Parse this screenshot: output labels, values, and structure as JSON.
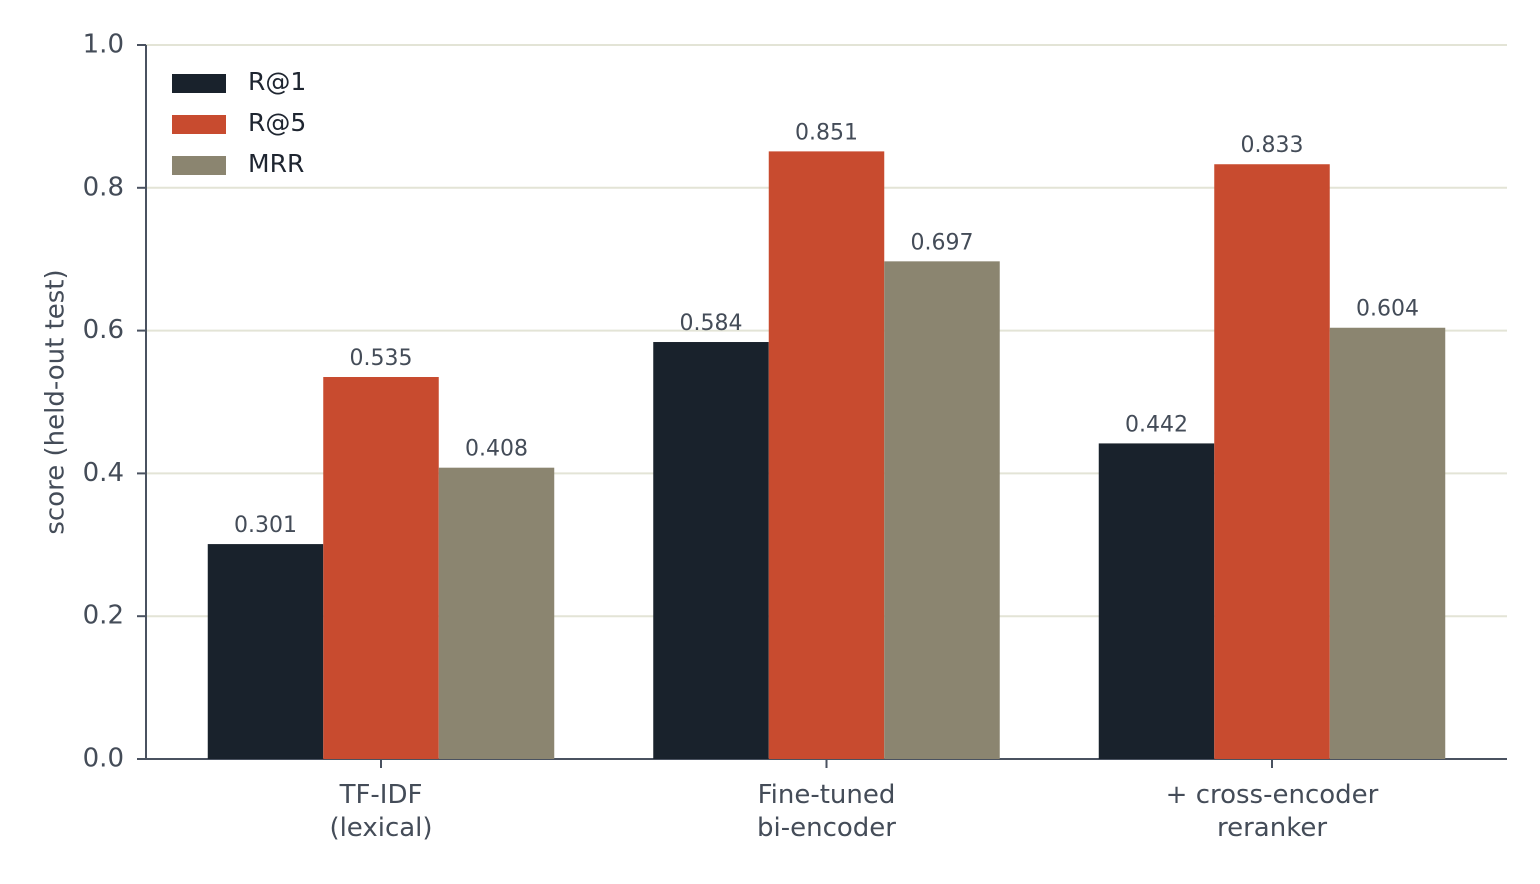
{
  "chart_data": {
    "type": "bar",
    "ylabel": "score (held-out test)",
    "categories": [
      "TF-IDF\n(lexical)",
      "Fine-tuned\nbi-encoder",
      "+ cross-encoder\nreranker"
    ],
    "series": [
      {
        "name": "R@1",
        "color": "#19222c",
        "values": [
          0.301,
          0.584,
          0.442
        ]
      },
      {
        "name": "R@5",
        "color": "#c84b2f",
        "values": [
          0.535,
          0.851,
          0.833
        ]
      },
      {
        "name": "MRR",
        "color": "#8b8570",
        "values": [
          0.408,
          0.697,
          0.604
        ]
      }
    ],
    "ylim": [
      0,
      1
    ],
    "yticks": [
      {
        "value": 0,
        "label": "0.0"
      },
      0.2,
      0.4,
      0.6,
      0.8,
      {
        "value": 1,
        "label": "1.0"
      }
    ],
    "grid": true,
    "legend": "upper-left"
  }
}
